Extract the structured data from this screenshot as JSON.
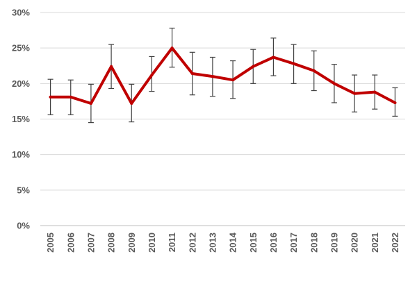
{
  "chart_data": {
    "type": "line",
    "title": "",
    "xlabel": "",
    "ylabel": "",
    "x": [
      "2005",
      "2006",
      "2007",
      "2008",
      "2009",
      "2010",
      "2011",
      "2012",
      "2013",
      "2014",
      "2015",
      "2016",
      "2017",
      "2018",
      "2019",
      "2020",
      "2021",
      "2022"
    ],
    "series": [
      {
        "values": [
          18.1,
          18.1,
          17.2,
          22.4,
          17.2,
          21.2,
          25.0,
          21.4,
          21.0,
          20.5,
          22.4,
          23.7,
          22.8,
          21.8,
          20.0,
          18.6,
          18.8,
          17.3
        ],
        "error_low": [
          15.6,
          15.6,
          14.5,
          19.3,
          14.6,
          18.9,
          22.3,
          18.4,
          18.2,
          17.9,
          20.0,
          21.1,
          20.0,
          19.0,
          17.3,
          16.0,
          16.4,
          15.4
        ],
        "error_high": [
          20.6,
          20.5,
          19.9,
          25.5,
          19.9,
          23.8,
          27.8,
          24.4,
          23.7,
          23.2,
          24.8,
          26.4,
          25.5,
          24.6,
          22.7,
          21.2,
          21.2,
          19.4
        ],
        "color": "#c00000"
      }
    ],
    "ylim": [
      0,
      30
    ],
    "yticks": [
      "0%",
      "5%",
      "10%",
      "15%",
      "20%",
      "25%",
      "30%"
    ],
    "ytick_values": [
      0,
      5,
      10,
      15,
      20,
      25,
      30
    ],
    "grid": true,
    "legend": "none"
  }
}
